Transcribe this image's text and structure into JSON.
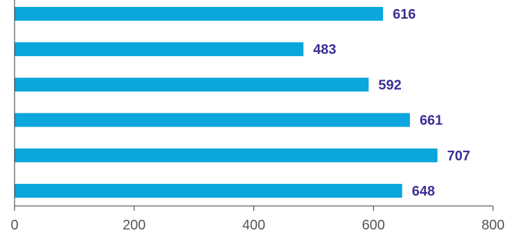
{
  "chart_data": {
    "type": "bar",
    "orientation": "horizontal",
    "categories": [
      "",
      "",
      "",
      "",
      "",
      ""
    ],
    "values": [
      616,
      483,
      592,
      661,
      707,
      648
    ],
    "data_labels": [
      "616",
      "483",
      "592",
      "661",
      "707",
      "648"
    ],
    "xlim": [
      0,
      800
    ],
    "x_ticks": [
      0,
      200,
      400,
      600,
      800
    ],
    "x_tick_labels": [
      "0",
      "200",
      "400",
      "600",
      "800"
    ],
    "title": "",
    "xlabel": "",
    "ylabel": "",
    "grid": false,
    "legend": "none",
    "colors": {
      "bar": "#0aa6dc",
      "data_label": "#3a2f96",
      "axis": "#333333",
      "tick_label": "#555555"
    }
  }
}
